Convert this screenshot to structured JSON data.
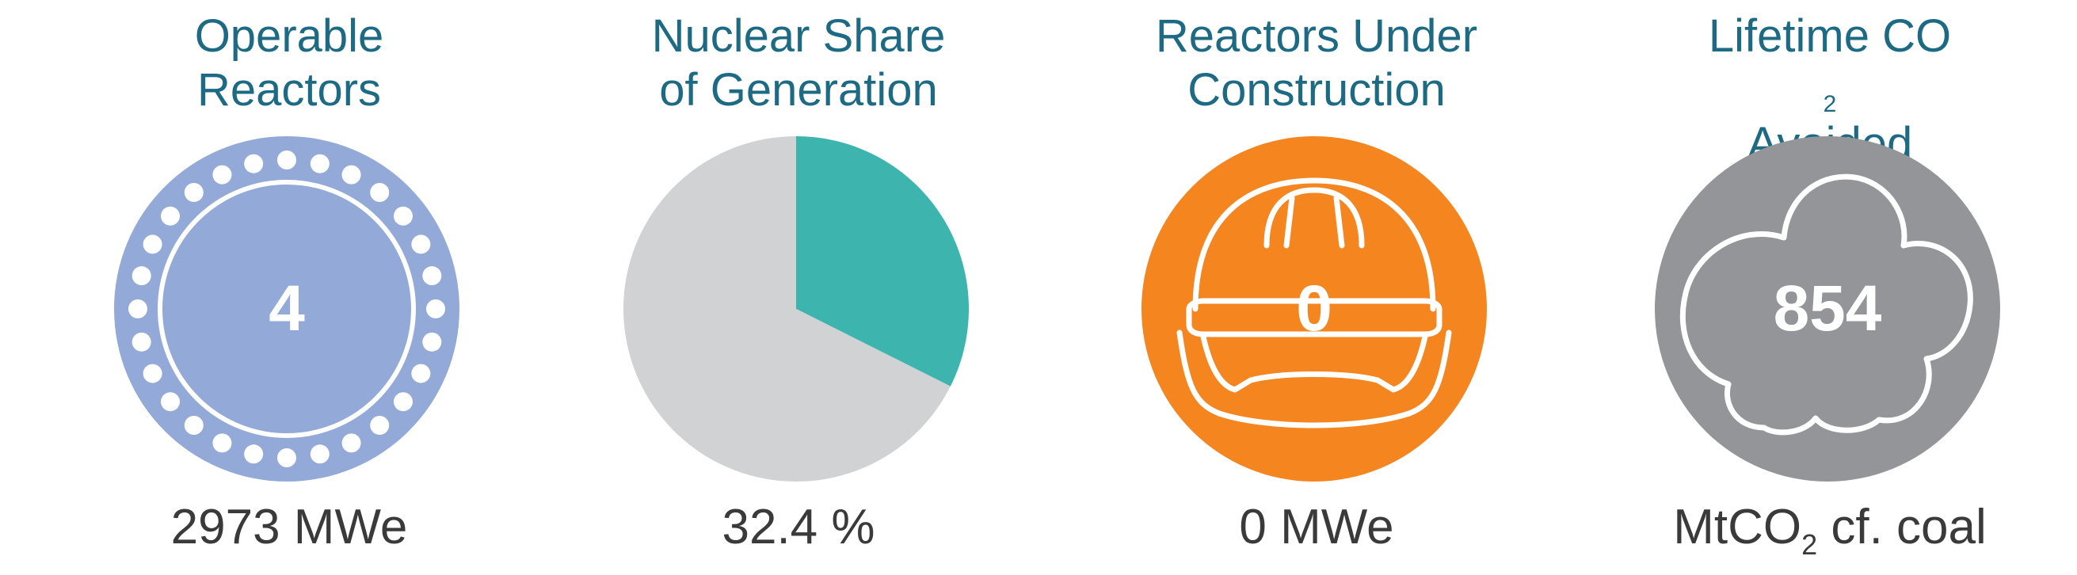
{
  "colors": {
    "title": "#1d6a85",
    "caption": "#3a3a3a",
    "reactors_circle": "#93a9d8",
    "pie_nuclear": "#3db5ae",
    "pie_other": "#d0d2d3",
    "construction_circle": "#f5851f",
    "co2_circle": "#939598",
    "icon_line": "#ffffff"
  },
  "panels": {
    "operable": {
      "title_line1": "Operable",
      "title_line2": "Reactors",
      "value": "4",
      "caption": "2973 MWe",
      "icon": "reactor-core-icon"
    },
    "share": {
      "title_line1": "Nuclear Share",
      "title_line2": "of Generation",
      "caption": "32.4 %",
      "icon": "pie-chart"
    },
    "construction": {
      "title_line1": "Reactors Under",
      "title_line2": "Construction",
      "value": "0",
      "caption": "0 MWe",
      "icon": "hard-hat-icon"
    },
    "co2": {
      "title_line1a": "Lifetime CO",
      "title_line1_sub": "2",
      "title_line2": "Avoided",
      "value": "854",
      "caption_a": "MtCO",
      "caption_sub": "2",
      "caption_b": " cf. coal",
      "icon": "cloud-icon"
    }
  },
  "chart_data": {
    "type": "pie",
    "title": "Nuclear Share of Generation",
    "slices": [
      {
        "name": "Nuclear",
        "value": 32.4
      },
      {
        "name": "Other",
        "value": 67.6
      }
    ],
    "start_angle_deg": 0,
    "direction": "clockwise",
    "unit": "%"
  }
}
